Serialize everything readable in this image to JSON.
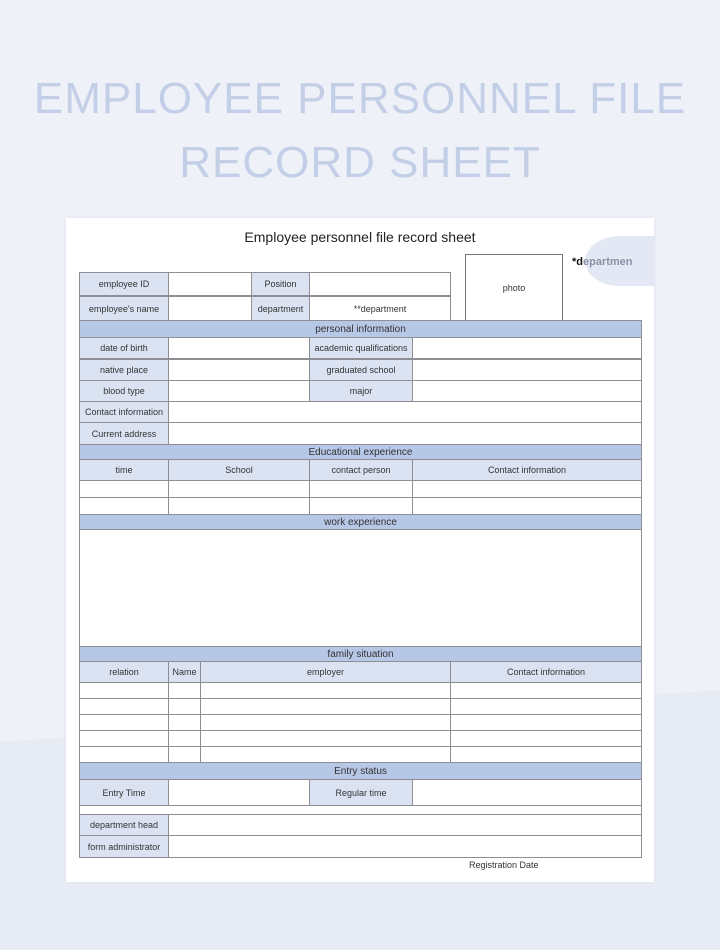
{
  "header": {
    "title_line1": "EMPLOYEE PERSONNEL FILE",
    "title_line2": "RECORD SHEET"
  },
  "sheet": {
    "title": "Employee personnel file record sheet",
    "photo": "photo",
    "department_tag_prefix": "*d",
    "department_tag_rest": "epartmen",
    "basic": {
      "employee_id": "employee ID",
      "position": "Position",
      "employee_name": "employee's name",
      "department": "department",
      "department_value": "**department"
    },
    "personal": {
      "header": "personal information",
      "date_of_birth": "date of birth",
      "academic_qualifications": "academic qualifications",
      "native_place": "native place",
      "graduated_school": "graduated school",
      "blood_type": "blood type",
      "major": "major",
      "contact_information": "Contact information",
      "current_address": "Current address"
    },
    "education": {
      "header": "Educational experience",
      "columns": [
        "time",
        "School",
        "contact person",
        "Contact information"
      ]
    },
    "work": {
      "header": "work experience"
    },
    "family": {
      "header": "family situation",
      "columns": [
        "relation",
        "Name",
        "employer",
        "Contact information"
      ]
    },
    "entry": {
      "header": "Entry status",
      "entry_time": "Entry Time",
      "regular_time": "Regular time"
    },
    "signoff": {
      "department_head": "department head",
      "form_administrator": "form administrator",
      "registration_date": "Registration Date"
    }
  }
}
